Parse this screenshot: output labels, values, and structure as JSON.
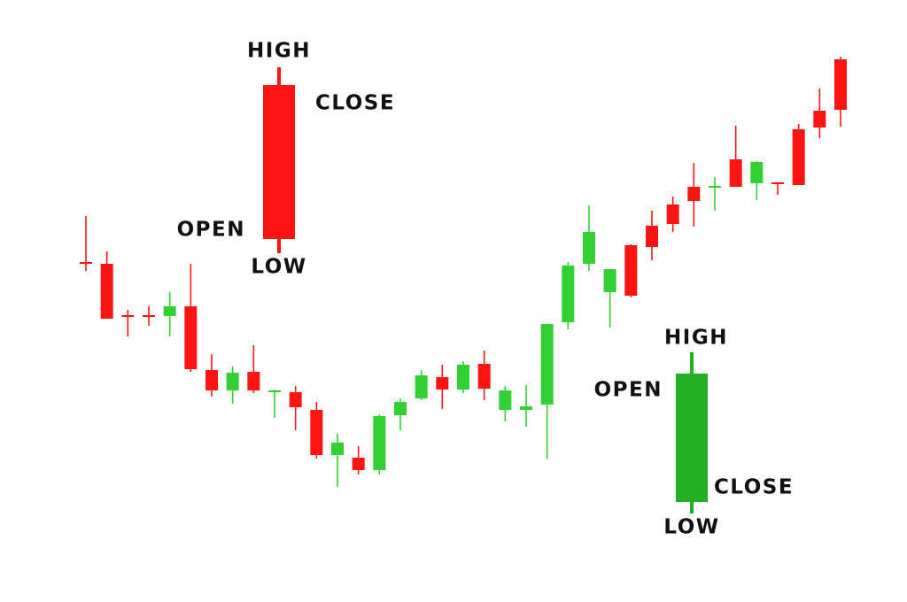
{
  "chart_data": {
    "type": "candlestick",
    "up_color": "#ff1414",
    "down_color": "#32d032",
    "ylim": [
      0,
      600
    ],
    "categories": [
      null,
      null,
      null,
      null,
      null,
      null,
      null,
      null,
      null,
      null,
      null,
      null,
      null,
      null,
      null,
      null,
      null,
      null,
      null,
      null,
      null,
      null,
      null,
      null,
      null,
      null,
      null,
      null,
      null,
      null,
      null,
      null,
      null,
      null,
      null,
      null,
      null
    ],
    "open": [
      302,
      240,
      242,
      242,
      254,
      183,
      159,
      179,
      159,
      159,
      140,
      86,
      100,
      69,
      130,
      146,
      176,
      160,
      188,
      161,
      159,
      141,
      234,
      300,
      338,
      296,
      266,
      321,
      347,
      373,
      390,
      389,
      417,
      392,
      391,
      456,
      476
    ],
    "high": [
      356,
      316,
      250,
      254,
      270,
      302,
      200,
      186,
      210,
      160,
      164,
      146,
      110,
      96,
      132,
      150,
      182,
      188,
      192,
      204,
      164,
      165,
      234,
      304,
      368,
      296,
      324,
      362,
      378,
      416,
      400,
      458,
      418,
      394,
      460,
      500,
      536
    ],
    "low": [
      294,
      240,
      220,
      232,
      220,
      180,
      152,
      144,
      156,
      128,
      114,
      82,
      50,
      64,
      64,
      114,
      148,
      138,
      156,
      148,
      124,
      118,
      82,
      228,
      294,
      230,
      264,
      306,
      338,
      344,
      362,
      389,
      374,
      380,
      391,
      444,
      457
    ],
    "close": [
      304,
      302,
      244,
      244,
      243,
      254,
      182,
      159,
      180,
      157,
      157,
      137,
      86,
      83,
      69,
      131,
      150,
      174,
      160,
      189,
      137,
      137,
      143,
      236,
      302,
      270,
      323,
      345,
      369,
      389,
      388,
      420,
      393,
      394,
      454,
      475,
      533
    ],
    "annotations": [
      {
        "color": "#ff1414",
        "open": 330,
        "high": 524,
        "low": 314,
        "close": 504,
        "labels": {
          "high": "HIGH",
          "close": "CLOSE",
          "open": "OPEN",
          "low": "LOW"
        }
      },
      {
        "color": "#22b022",
        "open": 178,
        "high": 202,
        "low": 20,
        "close": 33,
        "labels": {
          "high": "HIGH",
          "open": "OPEN",
          "close": "CLOSE",
          "low": "LOW"
        }
      }
    ]
  }
}
